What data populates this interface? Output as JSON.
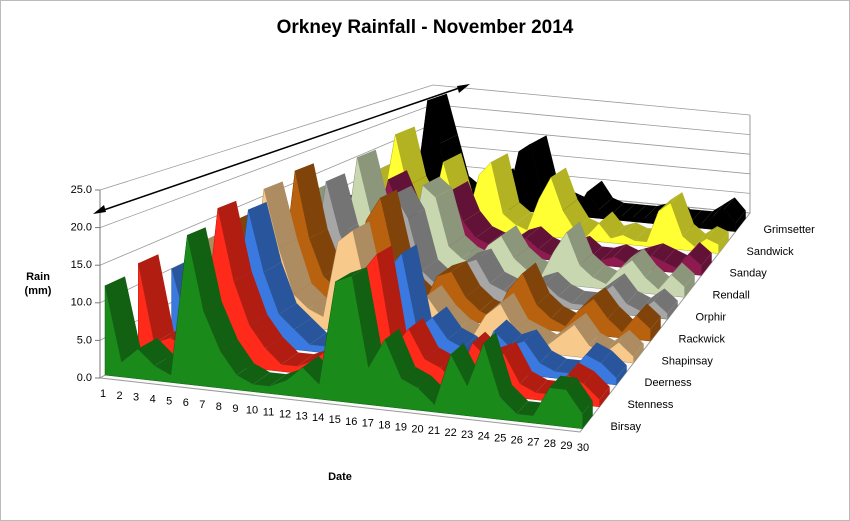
{
  "chart_data": {
    "type": "area3d",
    "title": "Orkney Rainfall - November 2014",
    "x_label": "Date",
    "y_label": "Rain (mm)",
    "x": [
      1,
      2,
      3,
      4,
      5,
      6,
      7,
      8,
      9,
      10,
      11,
      12,
      13,
      14,
      15,
      16,
      17,
      18,
      19,
      20,
      21,
      22,
      23,
      24,
      25,
      26,
      27,
      28,
      29,
      30
    ],
    "ylim": [
      0,
      25
    ],
    "yticks": [
      {
        "value": 0,
        "label": "0.0"
      },
      {
        "value": 5,
        "label": "5.0"
      },
      {
        "value": 10,
        "label": "10.0"
      },
      {
        "value": 15,
        "label": "15.0"
      },
      {
        "value": 20,
        "label": "20.0"
      },
      {
        "value": 25,
        "label": "25.0"
      }
    ],
    "grid": true,
    "series": [
      {
        "name": "Birsay",
        "color": "#1a8a1a",
        "values": [
          12,
          2,
          4,
          2,
          1,
          20,
          10,
          5,
          2,
          1,
          1,
          2,
          4,
          2,
          16,
          17,
          5,
          9,
          4,
          3,
          1,
          8,
          4,
          10,
          3,
          1,
          1,
          5,
          5,
          2
        ]
      },
      {
        "name": "Stenness",
        "color": "#ff2a1a",
        "values": [
          13,
          2,
          3,
          2,
          1,
          22,
          12,
          6,
          3,
          1,
          1,
          2,
          4,
          2,
          15,
          18,
          5,
          8,
          4,
          3,
          1,
          7,
          5,
          6,
          2,
          1,
          1,
          4,
          3,
          1
        ]
      },
      {
        "name": "Deerness",
        "color": "#3a7ae0",
        "values": [
          10,
          2,
          3,
          2,
          1,
          20,
          11,
          5,
          3,
          1,
          1,
          2,
          3,
          2,
          13,
          16,
          5,
          7,
          4,
          3,
          1,
          6,
          4,
          5,
          2,
          1,
          1,
          4,
          3,
          1
        ]
      },
      {
        "name": "Shapinsay",
        "color": "#f7c98a",
        "values": [
          12,
          3,
          3,
          2,
          21,
          12,
          5,
          3,
          2,
          14,
          16,
          6,
          3,
          2,
          5,
          7,
          4,
          2,
          1,
          5,
          7,
          3,
          2,
          1,
          3,
          5,
          2,
          1,
          3,
          1
        ]
      },
      {
        "name": "Rackwick",
        "color": "#b8620f",
        "values": [
          13,
          3,
          3,
          2,
          22,
          11,
          5,
          3,
          2,
          15,
          19,
          9,
          4,
          2,
          7,
          8,
          4,
          2,
          1,
          6,
          9,
          4,
          2,
          1,
          4,
          6,
          3,
          1,
          4,
          2
        ]
      },
      {
        "name": "Orphir",
        "color": "#a6a6a6",
        "values": [
          10,
          3,
          3,
          2,
          18,
          9,
          4,
          2,
          1,
          17,
          13,
          4,
          2,
          1,
          6,
          7,
          3,
          2,
          1,
          3,
          4,
          2,
          1,
          1,
          3,
          5,
          2,
          1,
          3,
          1
        ]
      },
      {
        "name": "Rendall",
        "color": "#c9d7b0",
        "values": [
          12,
          4,
          3,
          2,
          20,
          10,
          4,
          3,
          2,
          16,
          14,
          5,
          3,
          2,
          6,
          8,
          4,
          2,
          1,
          6,
          10,
          4,
          2,
          1,
          4,
          6,
          3,
          1,
          4,
          2
        ]
      },
      {
        "name": "Sanday",
        "color": "#8e1a4f",
        "values": [
          4,
          9,
          3,
          2,
          13,
          7,
          3,
          2,
          1,
          12,
          6,
          3,
          2,
          1,
          3,
          4,
          2,
          1,
          2,
          3,
          1,
          1,
          2,
          1,
          2,
          3,
          2,
          1,
          4,
          2
        ]
      },
      {
        "name": "Sandwick",
        "color": "#ffff33",
        "values": [
          10,
          4,
          19,
          8,
          3,
          2,
          14,
          5,
          2,
          12,
          15,
          4,
          2,
          1,
          8,
          13,
          6,
          2,
          1,
          4,
          1,
          2,
          1,
          1,
          8,
          10,
          3,
          1,
          3,
          2
        ]
      },
      {
        "name": "Grimsetter",
        "color": "#000000",
        "values": [
          8,
          3,
          24,
          14,
          4,
          2,
          1,
          3,
          7,
          2,
          14,
          16,
          5,
          3,
          2,
          1,
          6,
          2,
          1,
          1,
          1,
          1,
          2,
          3,
          1,
          1,
          1,
          3,
          5,
          2
        ]
      }
    ]
  }
}
